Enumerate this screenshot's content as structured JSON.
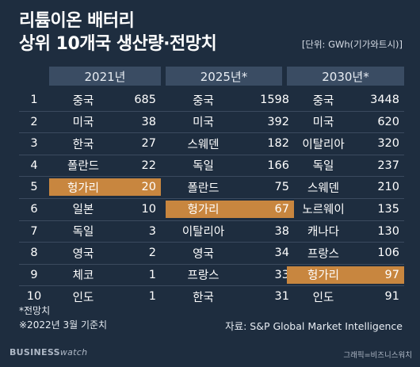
{
  "title_line1": "리튬이온 배터리",
  "title_line2": "상위 10개국 생산량·전망치",
  "unit": "[단위: GWh(기가와트시)]",
  "footnote1": "*전망치",
  "footnote2": "※2022년 3월 기준치",
  "source": "자료: S&P Global Market Intelligence",
  "brand_main": "BUSINESS",
  "brand_watch": "watch",
  "credit": "그래픽=비즈니스워치",
  "highlight_color": "#c8863f",
  "chart_data": {
    "type": "table",
    "groups": [
      "2021년",
      "2025년*",
      "2030년*"
    ],
    "ranks": [
      "1",
      "2",
      "3",
      "4",
      "5",
      "6",
      "7",
      "8",
      "9",
      "10"
    ],
    "highlight_country": "헝가리",
    "columns": [
      {
        "countries": [
          "중국",
          "미국",
          "한국",
          "폴란드",
          "헝가리",
          "일본",
          "독일",
          "영국",
          "체코",
          "인도"
        ],
        "values": [
          "685",
          "38",
          "27",
          "22",
          "20",
          "10",
          "3",
          "2",
          "1",
          "1"
        ]
      },
      {
        "countries": [
          "중국",
          "미국",
          "스웨덴",
          "독일",
          "폴란드",
          "헝가리",
          "이탈리아",
          "영국",
          "프랑스",
          "한국"
        ],
        "values": [
          "1598",
          "392",
          "182",
          "166",
          "75",
          "67",
          "38",
          "34",
          "33",
          "31"
        ]
      },
      {
        "countries": [
          "중국",
          "미국",
          "이탈리아",
          "독일",
          "스웨덴",
          "노르웨이",
          "캐나다",
          "프랑스",
          "헝가리",
          "인도"
        ],
        "values": [
          "3448",
          "620",
          "320",
          "237",
          "210",
          "135",
          "130",
          "106",
          "97",
          "91"
        ]
      }
    ]
  }
}
